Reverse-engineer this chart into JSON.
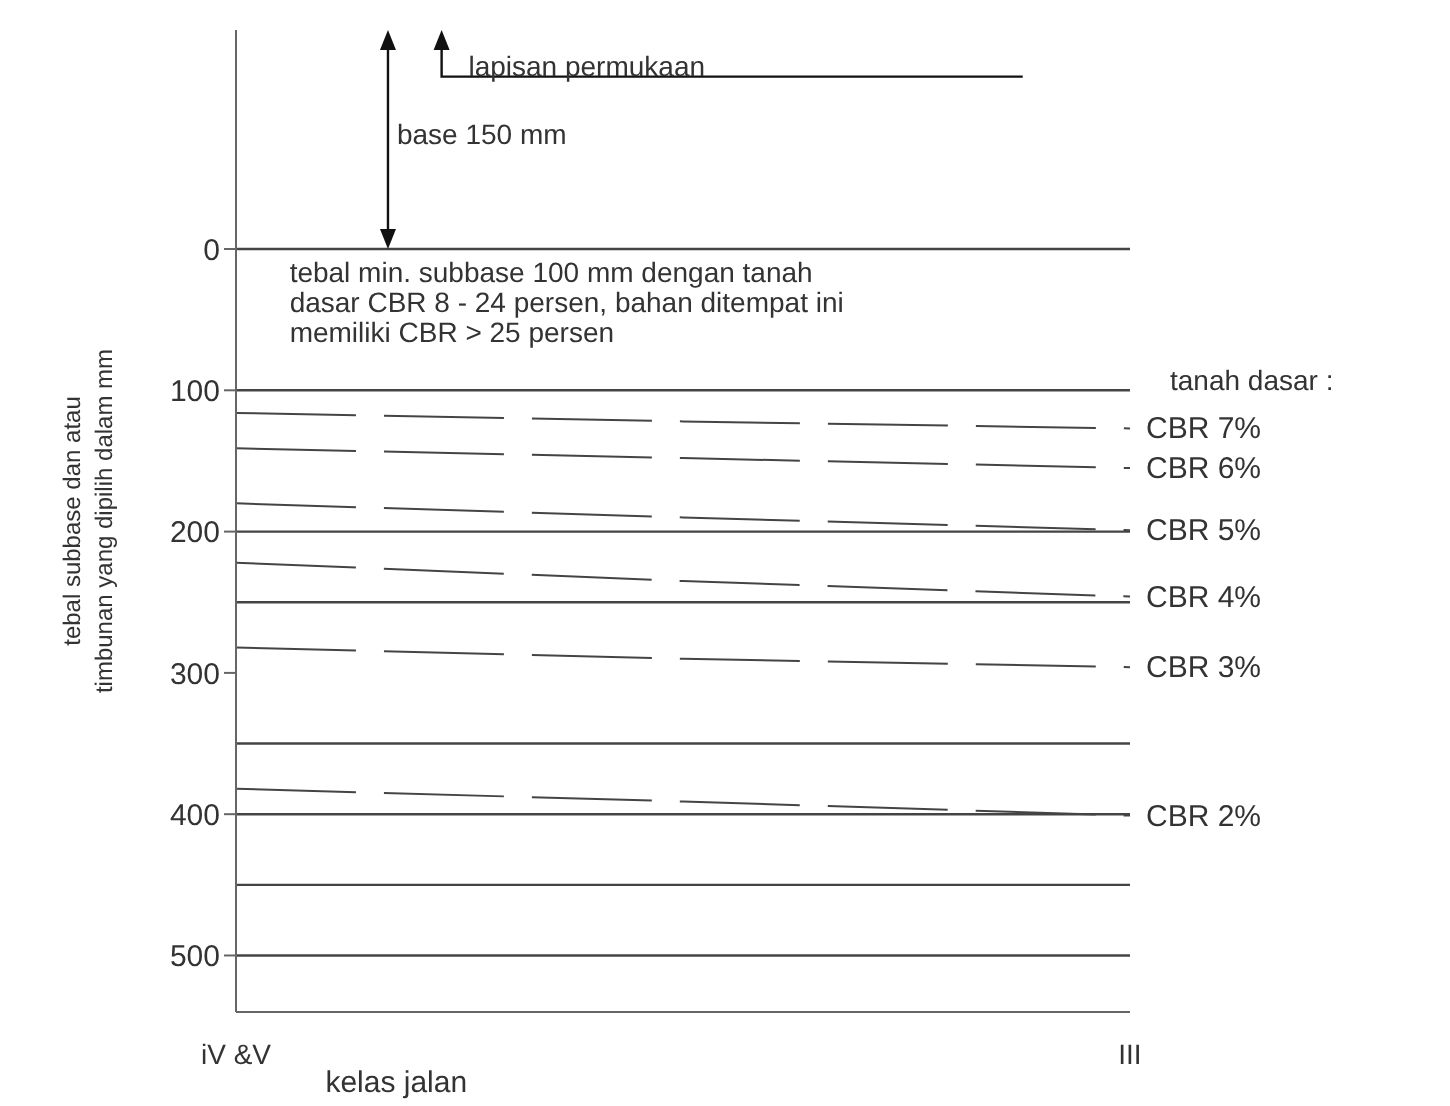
{
  "chart_data": {
    "type": "line",
    "xlabel": "kelas jalan",
    "ylabel": "tebal subbase dan atau timbunan yang dipilih dalam mm",
    "categories": [
      "iV &V",
      null,
      "III"
    ],
    "ylim": [
      540,
      -155
    ],
    "yticks": [
      0,
      100,
      200,
      300,
      400,
      500
    ],
    "marker": "none",
    "line_style": "dashed",
    "series": [
      {
        "name": "CBR 7%",
        "color": "#444444",
        "values": [
          116,
          122,
          127
        ]
      },
      {
        "name": "CBR 6%",
        "color": "#444444",
        "values": [
          141,
          148,
          155
        ]
      },
      {
        "name": "CBR 5%",
        "color": "#444444",
        "values": [
          180,
          190,
          199
        ]
      },
      {
        "name": "CBR 4%",
        "color": "#444444",
        "values": [
          222,
          235,
          246
        ]
      },
      {
        "name": "CBR 3%",
        "color": "#444444",
        "values": [
          282,
          290,
          296
        ]
      },
      {
        "name": "CBR 2%",
        "color": "#444444",
        "values": [
          382,
          391,
          401
        ]
      }
    ],
    "ref_lines": [
      {
        "axis": "y",
        "value": 0,
        "color": "#444444"
      },
      {
        "axis": "y",
        "value": 100,
        "color": "#444444"
      },
      {
        "axis": "y",
        "value": 200,
        "color": "#444444"
      },
      {
        "axis": "y",
        "value": 250,
        "color": "#444444"
      },
      {
        "axis": "y",
        "value": 350,
        "color": "#444444"
      },
      {
        "axis": "y",
        "value": 400,
        "color": "#444444"
      },
      {
        "axis": "y",
        "value": 450,
        "color": "#444444"
      },
      {
        "axis": "y",
        "value": 500,
        "color": "#444444"
      }
    ],
    "annotations": [
      "lapisan permukaan",
      "base 150 mm",
      "tebal min. subbase 100 mm dengan tanah dasar CBR 8 - 24 persen, bahan ditempat ini memiliki CBR > 25 persen",
      "tanah dasar :"
    ]
  }
}
